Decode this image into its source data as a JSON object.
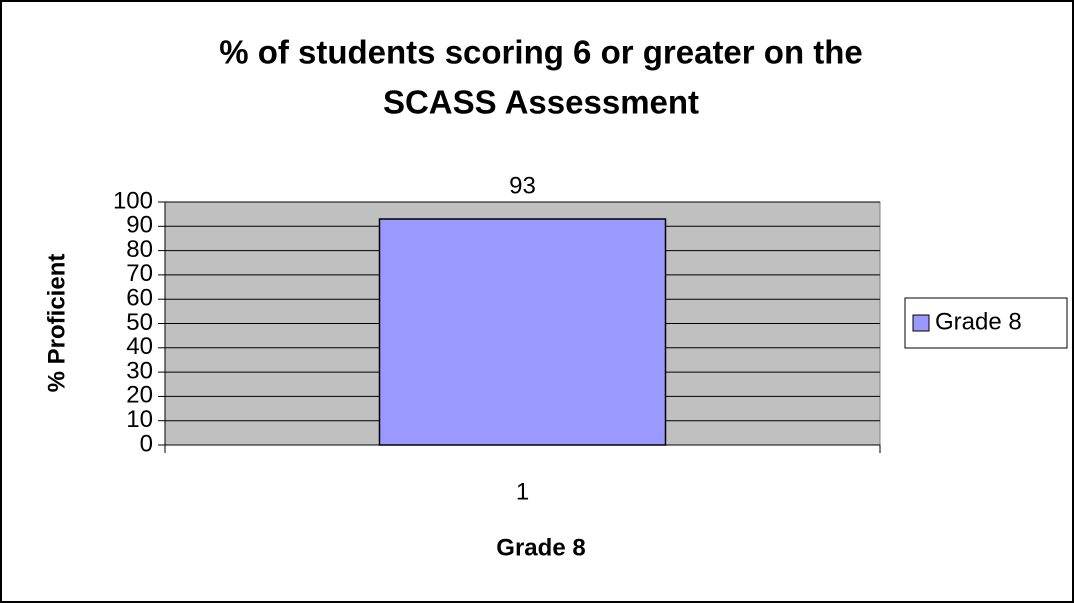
{
  "chart_data": {
    "type": "bar",
    "title": [
      "% of students scoring 6 or greater on the",
      "SCASS Assessment"
    ],
    "xlabel": "Grade 8",
    "ylabel": "% Proficient",
    "categories": [
      "1"
    ],
    "series": [
      {
        "name": "Grade 8",
        "color": "#9999ff",
        "values": [
          93
        ]
      }
    ],
    "ylim": [
      0,
      100
    ],
    "yticks": [
      0,
      10,
      20,
      30,
      40,
      50,
      60,
      70,
      80,
      90,
      100
    ],
    "grid": true,
    "legend": "right",
    "plot_background": "#c0c0c0"
  }
}
